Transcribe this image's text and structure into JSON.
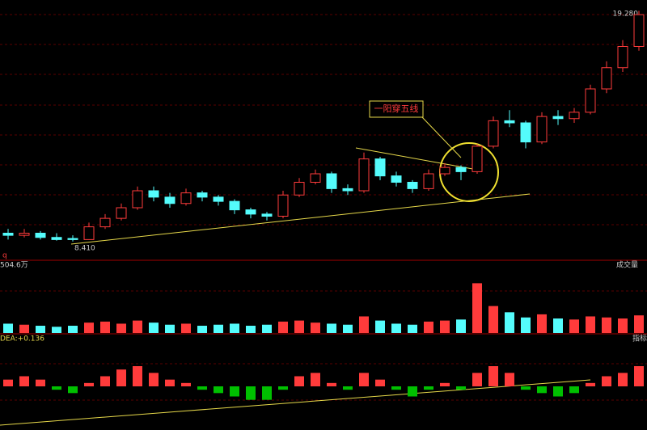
{
  "chart_data": [
    {
      "type": "candlestick",
      "open": [
        8.8,
        8.7,
        8.8,
        8.6,
        8.55,
        8.5,
        9.1,
        9.5,
        10.0,
        10.8,
        10.5,
        10.2,
        10.7,
        10.5,
        10.3,
        9.9,
        9.7,
        9.6,
        10.6,
        11.2,
        11.6,
        10.9,
        10.8,
        12.3,
        11.5,
        11.2,
        10.9,
        11.6,
        11.9,
        11.7,
        12.9,
        14.1,
        14.0,
        13.1,
        14.3,
        14.2,
        14.5,
        15.6,
        16.6,
        17.6
      ],
      "high": [
        9.0,
        9.0,
        8.9,
        8.8,
        8.7,
        9.3,
        9.7,
        10.2,
        11.0,
        11.0,
        10.7,
        10.9,
        10.8,
        10.6,
        10.4,
        10.0,
        9.8,
        10.8,
        11.4,
        11.8,
        11.7,
        11.1,
        12.6,
        12.4,
        11.7,
        11.3,
        11.8,
        12.1,
        12.0,
        13.0,
        14.3,
        14.6,
        14.1,
        14.5,
        14.6,
        14.7,
        15.8,
        16.9,
        17.9,
        19.28
      ],
      "low": [
        8.5,
        8.6,
        8.5,
        8.45,
        8.41,
        8.5,
        9.0,
        9.4,
        9.9,
        10.3,
        10.0,
        10.1,
        10.3,
        10.1,
        9.7,
        9.5,
        9.4,
        9.5,
        10.5,
        11.1,
        10.7,
        10.6,
        10.7,
        11.3,
        11.0,
        10.7,
        10.8,
        11.5,
        11.3,
        11.6,
        12.8,
        13.8,
        12.8,
        13.0,
        13.9,
        14.0,
        14.4,
        15.4,
        16.4,
        17.4
      ],
      "close": [
        8.7,
        8.8,
        8.6,
        8.5,
        8.5,
        9.1,
        9.5,
        10.0,
        10.8,
        10.5,
        10.2,
        10.7,
        10.5,
        10.3,
        9.9,
        9.7,
        9.6,
        10.6,
        11.2,
        11.6,
        10.9,
        10.8,
        12.3,
        11.5,
        11.2,
        10.9,
        11.6,
        11.9,
        11.7,
        12.9,
        14.1,
        14.0,
        13.1,
        14.3,
        14.2,
        14.5,
        15.6,
        16.6,
        17.6,
        19.1
      ],
      "up_color": "#ff3b3b",
      "down_color": "#54fcfc",
      "ylim": [
        7.6,
        19.6
      ],
      "high_label": "19.280",
      "low_label": "8.410",
      "annotation": "一阳穿五线",
      "marker": "q"
    },
    {
      "type": "bar",
      "title": "504.6万",
      "label": "成交量",
      "values": [
        90,
        80,
        70,
        60,
        70,
        100,
        110,
        90,
        120,
        100,
        80,
        90,
        70,
        80,
        90,
        70,
        80,
        110,
        120,
        100,
        90,
        80,
        160,
        120,
        90,
        80,
        110,
        120,
        130,
        480,
        260,
        200,
        150,
        180,
        140,
        130,
        160,
        150,
        140,
        170
      ],
      "up_color": "#ff3b3b",
      "down_color": "#54fcfc",
      "ylim": [
        0,
        600
      ]
    },
    {
      "type": "bar",
      "title": "DEA:+0.136",
      "label": "指标",
      "values": [
        0.1,
        0.15,
        0.1,
        -0.05,
        -0.1,
        0.05,
        0.15,
        0.25,
        0.3,
        0.2,
        0.1,
        0.05,
        -0.05,
        -0.1,
        -0.15,
        -0.2,
        -0.2,
        -0.05,
        0.15,
        0.2,
        0.05,
        -0.05,
        0.2,
        0.1,
        -0.05,
        -0.15,
        -0.05,
        0.05,
        -0.05,
        0.2,
        0.3,
        0.2,
        -0.05,
        -0.1,
        -0.15,
        -0.1,
        0.05,
        0.15,
        0.2,
        0.3
      ],
      "up_color": "#ff3b3b",
      "down_color": "#00c000",
      "ylim": [
        -0.6,
        0.6
      ]
    }
  ]
}
